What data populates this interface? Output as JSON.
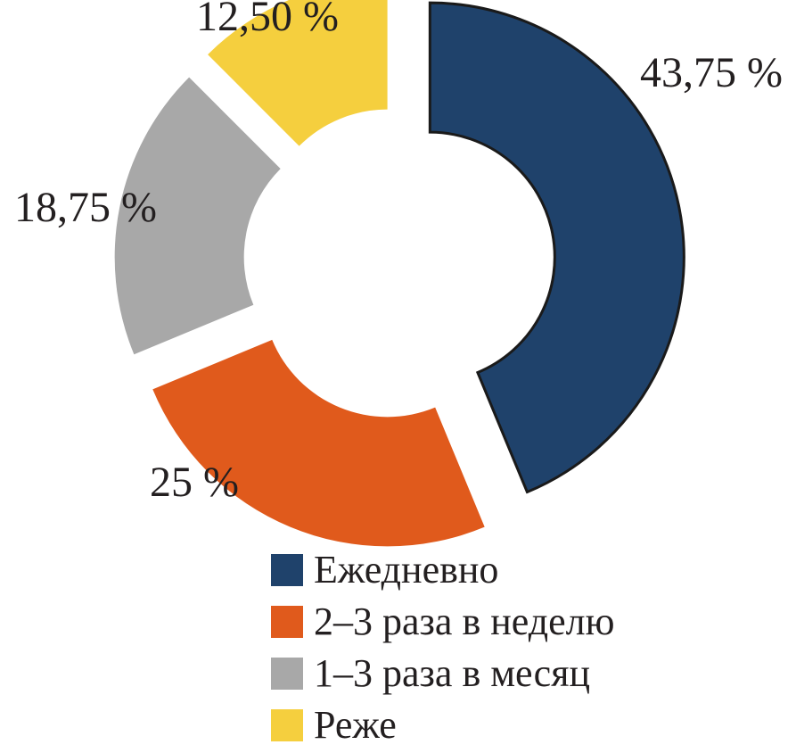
{
  "chart_data": {
    "type": "pie",
    "variant": "donut-exploded",
    "categories": [
      "Ежедневно",
      "2–3 раза в неделю",
      "1–3 раза в месяц",
      "Реже"
    ],
    "values": [
      43.75,
      25,
      18.75,
      12.5
    ],
    "data_labels": [
      "43,75 %",
      "25 %",
      "18,75 %",
      "12,50 %"
    ],
    "colors": [
      "#1f426b",
      "#e05a1c",
      "#a8a8a8",
      "#f5cf3e"
    ],
    "legend_position": "bottom-right",
    "title": ""
  }
}
